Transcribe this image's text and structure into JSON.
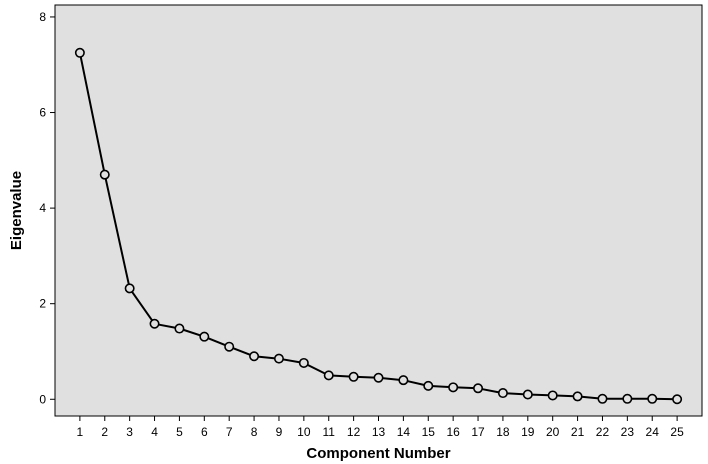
{
  "chart_data": {
    "type": "line",
    "title": "",
    "xlabel": "Component Number",
    "ylabel": "Eigenvalue",
    "x": [
      1,
      2,
      3,
      4,
      5,
      6,
      7,
      8,
      9,
      10,
      11,
      12,
      13,
      14,
      15,
      16,
      17,
      18,
      19,
      20,
      21,
      22,
      23,
      24,
      25
    ],
    "x_tick_labels": [
      "1",
      "2",
      "3",
      "4",
      "5",
      "6",
      "7",
      "8",
      "9",
      "10",
      "11",
      "12",
      "13",
      "14",
      "15",
      "16",
      "17",
      "18",
      "19",
      "20",
      "21",
      "22",
      "23",
      "24",
      "25"
    ],
    "series": [
      {
        "values": [
          7.25,
          4.7,
          2.32,
          1.58,
          1.48,
          1.31,
          1.1,
          0.9,
          0.85,
          0.76,
          0.5,
          0.47,
          0.45,
          0.4,
          0.28,
          0.25,
          0.23,
          0.13,
          0.1,
          0.08,
          0.06,
          0.01,
          0.01,
          0.01,
          0.0
        ]
      }
    ],
    "y_ticks": [
      0,
      2,
      4,
      6,
      8
    ],
    "y_tick_labels": [
      "0",
      "2",
      "4",
      "6",
      "8"
    ],
    "ylim": [
      -0.35,
      8.25
    ],
    "xlim": [
      0,
      26
    ],
    "grid": false,
    "marker": "open-circle",
    "colors": {
      "plot_background": "#e0e0e0",
      "line": "#000000",
      "marker_fill": "#e0e0e0",
      "frame": "#000000"
    }
  }
}
